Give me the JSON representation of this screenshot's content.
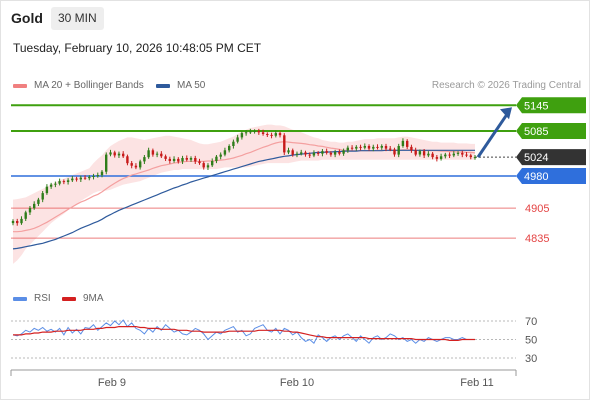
{
  "header": {
    "instrument": "Gold",
    "interval": "30 MIN",
    "timestamp": "Tuesday, February 10, 2026 10:48:05 PM CET"
  },
  "legend": {
    "ma20_label": "MA 20 + Bollinger Bands",
    "ma50_label": "MA 50",
    "rsi_label": "RSI",
    "ma9_label": "9MA"
  },
  "credit": "Research © 2026 Trading Central",
  "colors": {
    "green_level": "#3fa00f",
    "blue_level": "#2f6fdc",
    "red_level": "#e44444",
    "current_price": "#333333",
    "ma20": "#f4a0a0",
    "bollinger_fill": "#fbdada",
    "ma50": "#2e5a9c",
    "candle_up": "#2f7d1a",
    "candle_down": "#c71a1a",
    "rsi": "#5b8ee6",
    "ma9": "#d42020"
  },
  "chart_data": [
    {
      "type": "candlestick",
      "x_ticks": [
        "Feb 9",
        "Feb 10",
        "Feb 11"
      ],
      "ylim": [
        4760,
        5170
      ],
      "levels": [
        {
          "value": 5145,
          "label": "5145",
          "kind": "resistance"
        },
        {
          "value": 5085,
          "label": "5085",
          "kind": "resistance"
        },
        {
          "value": 5024,
          "label": "5024",
          "kind": "current"
        },
        {
          "value": 4980,
          "label": "4980",
          "kind": "pivot"
        },
        {
          "value": 4905,
          "label": "4905",
          "kind": "support"
        },
        {
          "value": 4835,
          "label": "4835",
          "kind": "support"
        }
      ],
      "forecast_target": 5145,
      "close": [
        4875,
        4870,
        4880,
        4895,
        4905,
        4915,
        4925,
        4940,
        4955,
        4960,
        4962,
        4968,
        4966,
        4970,
        4974,
        4972,
        4976,
        4975,
        4978,
        4980,
        4982,
        4990,
        5030,
        5035,
        5028,
        5032,
        5026,
        5010,
        5004,
        5000,
        5014,
        5024,
        5040,
        5030,
        5032,
        5026,
        5020,
        5015,
        5020,
        5014,
        5022,
        5018,
        5022,
        5014,
        5010,
        5000,
        5005,
        5015,
        5025,
        5030,
        5040,
        5050,
        5060,
        5070,
        5080,
        5082,
        5084,
        5085,
        5082,
        5078,
        5076,
        5074,
        5080,
        5075,
        5035,
        5040,
        5030,
        5032,
        5035,
        5030,
        5028,
        5034,
        5032,
        5038,
        5034,
        5030,
        5036,
        5032,
        5040,
        5046,
        5044,
        5048,
        5046,
        5050,
        5044,
        5048,
        5046,
        5050,
        5044,
        5042,
        5030,
        5050,
        5062,
        5048,
        5040,
        5030,
        5038,
        5028,
        5032,
        5024,
        5020,
        5026,
        5030,
        5028,
        5032,
        5034,
        5030,
        5028,
        5024,
        5024
      ],
      "ma20": [
        4850,
        4850,
        4851,
        4853,
        4855,
        4858,
        4862,
        4867,
        4872,
        4878,
        4884,
        4890,
        4896,
        4902,
        4908,
        4914,
        4919,
        4923,
        4928,
        4933,
        4937,
        4943,
        4950,
        4957,
        4963,
        4969,
        4974,
        4978,
        4982,
        4985,
        4988,
        4991,
        4994,
        4998,
        5001,
        5004,
        5006,
        5008,
        5010,
        5012,
        5013,
        5014,
        5014,
        5014,
        5014,
        5014,
        5015,
        5015,
        5016,
        5017,
        5018,
        5020,
        5022,
        5025,
        5028,
        5032,
        5035,
        5039,
        5043,
        5047,
        5050,
        5054,
        5057,
        5059,
        5060,
        5059,
        5058,
        5057,
        5056,
        5055,
        5053,
        5052,
        5050,
        5049,
        5047,
        5045,
        5044,
        5042,
        5040,
        5040,
        5039,
        5039,
        5039,
        5039,
        5039,
        5039,
        5040,
        5040,
        5040,
        5040,
        5040,
        5040,
        5041,
        5041,
        5041,
        5040,
        5040,
        5040,
        5039,
        5039,
        5039,
        5038,
        5038,
        5037,
        5037,
        5036,
        5036,
        5035,
        5035,
        5034
      ],
      "ma50": [
        4810,
        4811,
        4813,
        4815,
        4817,
        4819,
        4821,
        4823,
        4826,
        4829,
        4832,
        4836,
        4840,
        4844,
        4848,
        4853,
        4858,
        4862,
        4866,
        4870,
        4874,
        4879,
        4885,
        4890,
        4895,
        4900,
        4904,
        4908,
        4912,
        4916,
        4920,
        4924,
        4928,
        4932,
        4936,
        4940,
        4944,
        4948,
        4952,
        4955,
        4959,
        4962,
        4966,
        4969,
        4972,
        4975,
        4978,
        4981,
        4984,
        4987,
        4990,
        4993,
        4996,
        4999,
        5002,
        5005,
        5008,
        5011,
        5014,
        5016,
        5018,
        5020,
        5022,
        5024,
        5026,
        5027,
        5029,
        5030,
        5031,
        5032,
        5033,
        5034,
        5035,
        5035,
        5036,
        5036,
        5037,
        5037,
        5038,
        5038,
        5038,
        5038,
        5039,
        5039,
        5039,
        5039,
        5039,
        5039,
        5040,
        5040,
        5040,
        5040,
        5040,
        5040,
        5040,
        5040,
        5040,
        5040,
        5040,
        5040,
        5040,
        5040,
        5040,
        5040,
        5040,
        5040,
        5040,
        5040,
        5040,
        5040
      ],
      "bollinger_upper": [
        4925,
        4926,
        4928,
        4930,
        4935,
        4940,
        4945,
        4950,
        4955,
        4960,
        4965,
        4970,
        4974,
        4978,
        4982,
        4986,
        4990,
        4994,
        4998,
        5010,
        5020,
        5028,
        5040,
        5050,
        5056,
        5062,
        5066,
        5070,
        5070,
        5068,
        5066,
        5064,
        5066,
        5068,
        5070,
        5072,
        5074,
        5074,
        5072,
        5070,
        5068,
        5066,
        5064,
        5060,
        5056,
        5054,
        5054,
        5056,
        5058,
        5060,
        5064,
        5068,
        5072,
        5078,
        5084,
        5088,
        5092,
        5094,
        5096,
        5098,
        5100,
        5100,
        5098,
        5098,
        5096,
        5092,
        5088,
        5086,
        5082,
        5078,
        5074,
        5070,
        5068,
        5064,
        5062,
        5060,
        5060,
        5058,
        5058,
        5060,
        5060,
        5062,
        5064,
        5066,
        5066,
        5066,
        5068,
        5068,
        5068,
        5068,
        5068,
        5070,
        5072,
        5072,
        5070,
        5068,
        5066,
        5064,
        5062,
        5060,
        5060,
        5058,
        5058,
        5058,
        5058,
        5056,
        5056,
        5056,
        5055,
        5055
      ],
      "bollinger_lower": [
        4775,
        4783,
        4795,
        4810,
        4820,
        4830,
        4840,
        4850,
        4860,
        4870,
        4878,
        4885,
        4892,
        4900,
        4908,
        4915,
        4922,
        4928,
        4934,
        4940,
        4944,
        4946,
        4946,
        4948,
        4952,
        4956,
        4960,
        4962,
        4964,
        4966,
        4968,
        4972,
        4976,
        4980,
        4984,
        4988,
        4990,
        4992,
        4994,
        4994,
        4996,
        4996,
        4996,
        4996,
        4996,
        4996,
        4996,
        4996,
        4996,
        4998,
        5000,
        5000,
        5000,
        5000,
        5000,
        5000,
        5002,
        5004,
        5006,
        5008,
        5010,
        5010,
        5010,
        5010,
        5010,
        5010,
        5012,
        5014,
        5016,
        5016,
        5016,
        5016,
        5016,
        5018,
        5018,
        5018,
        5018,
        5018,
        5018,
        5018,
        5018,
        5018,
        5018,
        5018,
        5018,
        5018,
        5018,
        5018,
        5018,
        5018,
        5018,
        5018,
        5018,
        5018,
        5018,
        5018,
        5018,
        5018,
        5018,
        5018,
        5018,
        5018,
        5018,
        5018,
        5018,
        5018,
        5018,
        5018,
        5018,
        5018
      ]
    },
    {
      "type": "line",
      "x_ticks": [
        "Feb 9",
        "Feb 10",
        "Feb 11"
      ],
      "yticks": [
        70,
        50,
        30
      ],
      "ylim": [
        20,
        80
      ],
      "series": [
        {
          "name": "RSI",
          "values": [
            55,
            54,
            56,
            60,
            58,
            62,
            60,
            63,
            59,
            61,
            58,
            62,
            55,
            63,
            57,
            61,
            56,
            63,
            62,
            66,
            60,
            64,
            68,
            65,
            70,
            66,
            71,
            64,
            68,
            62,
            60,
            56,
            62,
            58,
            64,
            60,
            66,
            62,
            58,
            60,
            56,
            55,
            58,
            62,
            60,
            56,
            50,
            54,
            58,
            56,
            60,
            62,
            64,
            58,
            60,
            54,
            56,
            62,
            64,
            66,
            60,
            58,
            62,
            56,
            62,
            60,
            55,
            58,
            52,
            48,
            50,
            46,
            55,
            52,
            48,
            52,
            54,
            50,
            54,
            56,
            52,
            48,
            54,
            50,
            46,
            52,
            54,
            50,
            52,
            56,
            54,
            50,
            52,
            48,
            50,
            46,
            50,
            48,
            52,
            50,
            48,
            50,
            52,
            52,
            50,
            50,
            52,
            50,
            50,
            50
          ]
        },
        {
          "name": "9MA",
          "values": [
            55,
            55,
            55,
            56,
            56,
            57,
            57,
            58,
            58,
            58,
            59,
            59,
            59,
            60,
            60,
            60,
            60,
            61,
            61,
            61,
            62,
            62,
            63,
            63,
            63,
            64,
            64,
            64,
            64,
            64,
            63,
            63,
            62,
            62,
            62,
            61,
            61,
            61,
            61,
            60,
            60,
            60,
            59,
            59,
            59,
            58,
            58,
            58,
            58,
            58,
            58,
            59,
            59,
            59,
            59,
            59,
            59,
            59,
            60,
            60,
            60,
            60,
            60,
            60,
            59,
            59,
            58,
            58,
            57,
            56,
            55,
            54,
            53,
            53,
            52,
            52,
            52,
            52,
            52,
            52,
            52,
            52,
            52,
            52,
            51,
            51,
            51,
            51,
            51,
            51,
            51,
            51,
            51,
            51,
            51,
            50,
            50,
            50,
            50,
            50,
            50,
            50,
            50,
            49,
            49,
            49,
            50,
            50,
            50,
            50
          ]
        }
      ]
    }
  ]
}
